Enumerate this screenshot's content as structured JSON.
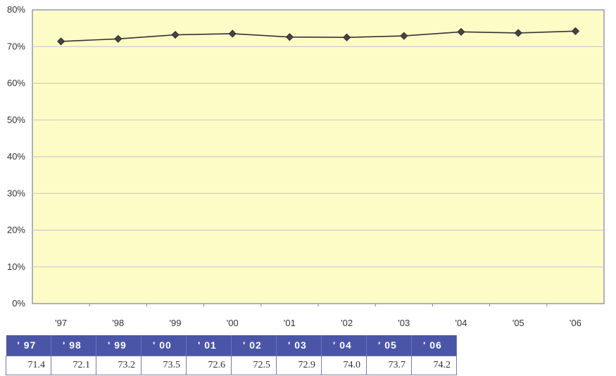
{
  "chart_data": {
    "type": "line",
    "categories": [
      "'97",
      "'98",
      "'99",
      "'00",
      "'01",
      "'02",
      "'03",
      "'04",
      "'05",
      "'06"
    ],
    "series": [
      {
        "values": [
          71.4,
          72.1,
          73.2,
          73.5,
          72.6,
          72.5,
          72.9,
          74.0,
          73.7,
          74.2
        ]
      }
    ],
    "ylim": [
      0,
      80
    ],
    "yticks": [
      0,
      10,
      20,
      30,
      40,
      50,
      60,
      70,
      80
    ],
    "ytick_labels": [
      "0%",
      "10%",
      "20%",
      "30%",
      "40%",
      "50%",
      "60%",
      "70%",
      "80%"
    ],
    "grid": true,
    "colors": {
      "plot_background": "#fdfcc6",
      "line": "#333333",
      "marker": "#444444",
      "grid": "#bfc2d8",
      "table_header": "#4a55a8"
    }
  },
  "table": {
    "headers": [
      "' 97",
      "' 98",
      "' 99",
      "' 00",
      "' 01",
      "' 02",
      "' 03",
      "' 04",
      "' 05",
      "' 06"
    ],
    "values": [
      "71.4",
      "72.1",
      "73.2",
      "73.5",
      "72.6",
      "72.5",
      "72.9",
      "74.0",
      "73.7",
      "74.2"
    ]
  }
}
